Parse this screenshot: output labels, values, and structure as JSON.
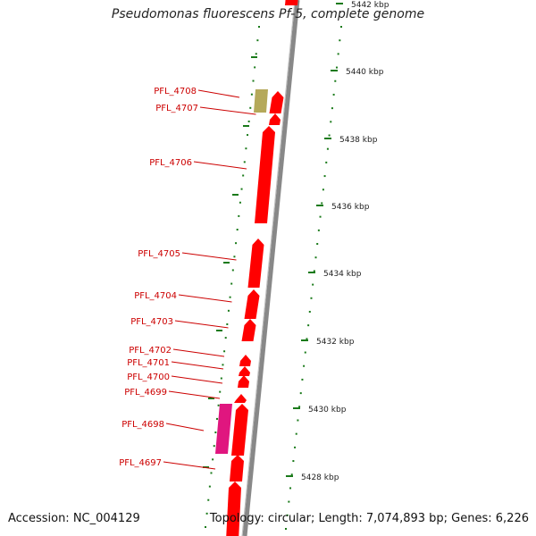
{
  "title": "Pseudomonas fluorescens Pf-5, complete genome",
  "accession": "Accession: NC_004129",
  "topology": "Topology: circular; Length: 7,074,893 bp; Genes: 6,226",
  "colors": {
    "gene": "#ff0000",
    "gene_alt_olive": "#b5a95a",
    "gene_alt_magenta": "#e0167f",
    "tick": "#1a7a1a",
    "backbone": "#888888",
    "label": "#cc0000"
  },
  "scale_labels": [
    "5442 kbp",
    "5440 kbp",
    "5438 kbp",
    "5436 kbp",
    "5434 kbp",
    "5432 kbp",
    "5430 kbp",
    "5428 kbp"
  ],
  "genes": [
    {
      "label": "PFL_4708",
      "color": "olive"
    },
    {
      "label": "PFL_4707",
      "color": "red"
    },
    {
      "label": "PFL_4706",
      "color": "red"
    },
    {
      "label": "PFL_4705",
      "color": "red"
    },
    {
      "label": "PFL_4704",
      "color": "red"
    },
    {
      "label": "PFL_4703",
      "color": "red"
    },
    {
      "label": "PFL_4702",
      "color": "red"
    },
    {
      "label": "PFL_4701",
      "color": "red"
    },
    {
      "label": "PFL_4700",
      "color": "red"
    },
    {
      "label": "PFL_4699",
      "color": "red"
    },
    {
      "label": "PFL_4698",
      "color": "magenta"
    },
    {
      "label": "PFL_4697",
      "color": "red"
    }
  ]
}
